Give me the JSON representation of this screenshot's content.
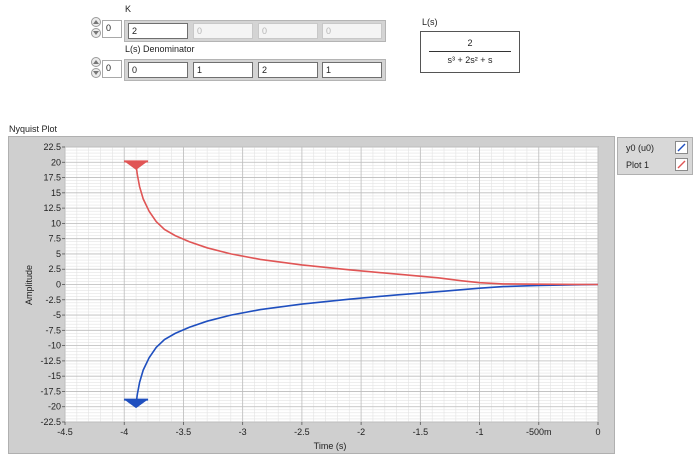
{
  "controls": {
    "k": {
      "label": "K",
      "index": "0",
      "values": [
        "2",
        "0",
        "0",
        "0"
      ]
    },
    "denominator": {
      "label": "L(s) Denominator",
      "index": "0",
      "values": [
        "0",
        "1",
        "2",
        "1"
      ]
    }
  },
  "transfer_function": {
    "label": "L(s)",
    "numerator": "2",
    "denominator_text": "s³ + 2s² + s"
  },
  "graph": {
    "title": "Nyquist Plot",
    "legend": [
      {
        "name": "y0 (u0)",
        "color": "#1f4fbf"
      },
      {
        "name": "Plot 1",
        "color": "#e05555"
      }
    ]
  },
  "chart_data": {
    "type": "line",
    "title": "Nyquist Plot",
    "xlabel": "Time (s)",
    "ylabel": "Amplitude",
    "xlim": [
      -4.5,
      0
    ],
    "ylim": [
      -22.5,
      22.5
    ],
    "x_ticks": [
      -4.5,
      -4,
      -3.5,
      -3,
      -2.5,
      -2,
      -1.5,
      -1,
      -0.5,
      0
    ],
    "x_tick_labels": [
      "-4.5",
      "-4",
      "-3.5",
      "-3",
      "-2.5",
      "-2",
      "-1.5",
      "-1",
      "-500m",
      "0"
    ],
    "y_ticks": [
      22.5,
      20,
      17.5,
      15,
      12.5,
      10,
      7.5,
      5,
      2.5,
      0,
      -2.5,
      -5,
      -7.5,
      -10,
      -12.5,
      -15,
      -17.5,
      -20,
      -22.5
    ],
    "y_tick_labels": [
      "22.5",
      "20",
      "17.5",
      "15",
      "12.5",
      "10",
      "7.5",
      "5",
      "2.5",
      "0",
      "-2.5",
      "-5",
      "-7.5",
      "-10",
      "-12.5",
      "-15",
      "-17.5",
      "-20",
      "-22.5"
    ],
    "grid": true,
    "legend_position": "right",
    "series": [
      {
        "name": "y0 (u0)",
        "color": "#1f4fbf",
        "x": [
          -3.9,
          -3.89,
          -3.87,
          -3.84,
          -3.79,
          -3.73,
          -3.66,
          -3.57,
          -3.45,
          -3.3,
          -3.1,
          -2.85,
          -2.5,
          -2.1,
          -1.7,
          -1.3,
          -1,
          -0.8,
          -0.5,
          -0.2,
          0
        ],
        "y": [
          -19.5,
          -18,
          -16,
          -14,
          -12,
          -10.3,
          -9,
          -8,
          -7,
          -6,
          -5,
          -4.1,
          -3.2,
          -2.4,
          -1.7,
          -1.1,
          -0.6,
          -0.35,
          -0.15,
          -0.05,
          0
        ]
      },
      {
        "name": "Plot 1",
        "color": "#e05555",
        "x": [
          -3.9,
          -3.89,
          -3.87,
          -3.84,
          -3.79,
          -3.73,
          -3.66,
          -3.57,
          -3.45,
          -3.3,
          -3.1,
          -2.85,
          -2.5,
          -2.1,
          -1.7,
          -1.35,
          -1.15,
          -1.0,
          -0.8,
          -0.5,
          -0.2,
          0
        ],
        "y": [
          19.5,
          18,
          16,
          14,
          12,
          10.3,
          9,
          8,
          7,
          6,
          5,
          4.1,
          3.2,
          2.4,
          1.7,
          1.1,
          0.6,
          0.3,
          0.1,
          0.05,
          0.02,
          0
        ]
      }
    ]
  }
}
